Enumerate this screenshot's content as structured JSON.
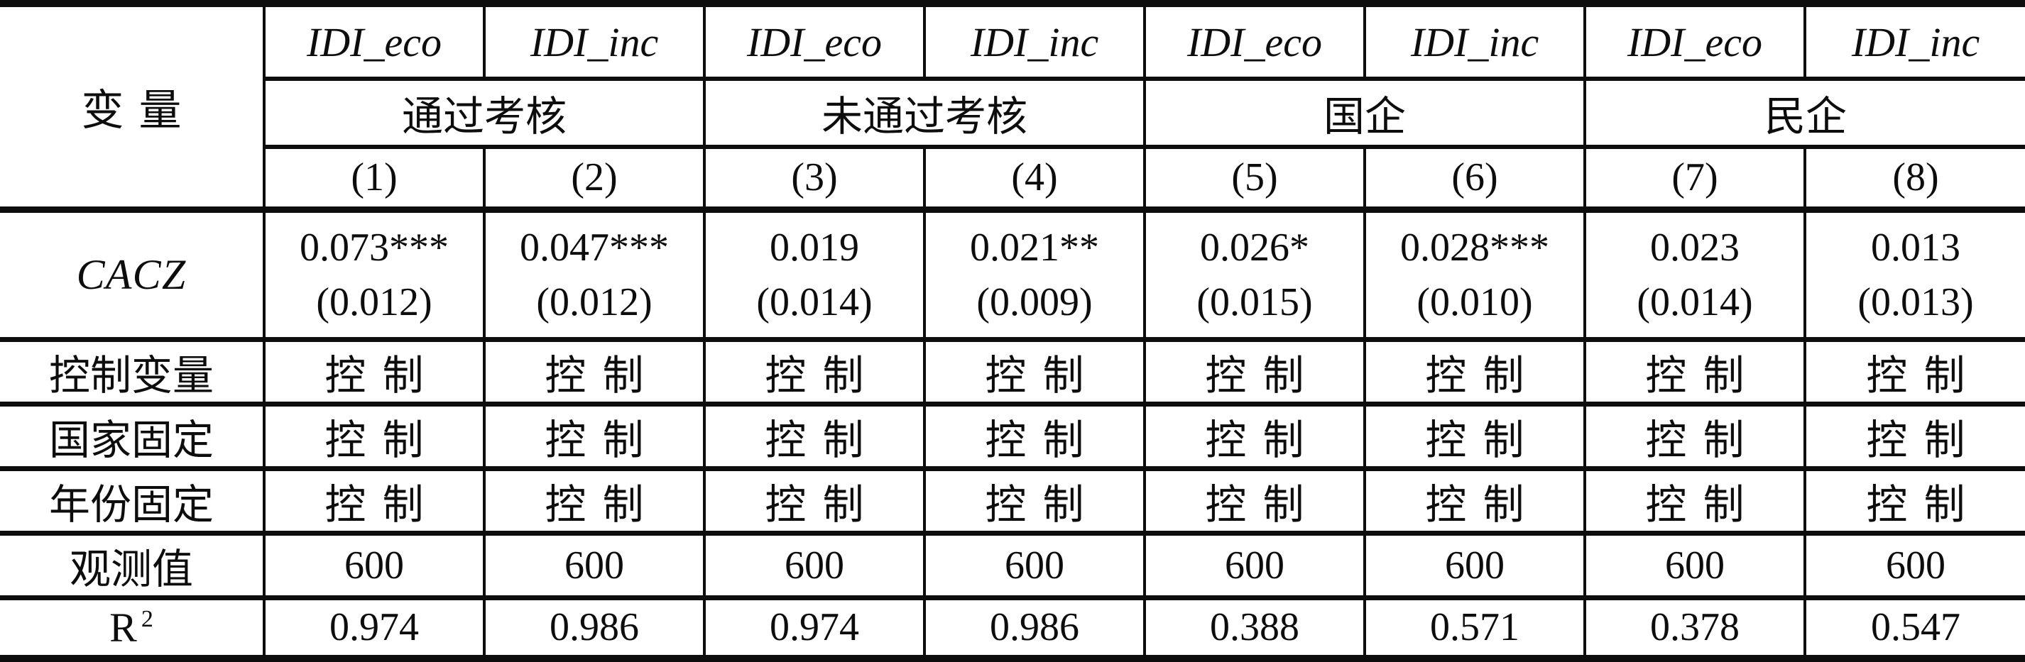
{
  "colors": {
    "ink": "#0d0d0d",
    "background": "#ffffff"
  },
  "table": {
    "corner_label": "变量",
    "dep_var_headers": [
      "IDI_eco",
      "IDI_inc",
      "IDI_eco",
      "IDI_inc",
      "IDI_eco",
      "IDI_inc",
      "IDI_eco",
      "IDI_inc"
    ],
    "group_headers": [
      "通过考核",
      "未通过考核",
      "国企",
      "民企"
    ],
    "model_numbers": [
      "(1)",
      "(2)",
      "(3)",
      "(4)",
      "(5)",
      "(6)",
      "(7)",
      "(8)"
    ],
    "coef_row": {
      "label": "CACZ",
      "coefficients": [
        "0.073***",
        "0.047***",
        "0.019",
        "0.021**",
        "0.026*",
        "0.028***",
        "0.023",
        "0.013"
      ],
      "std_errors": [
        "(0.012)",
        "(0.012)",
        "(0.014)",
        "(0.009)",
        "(0.015)",
        "(0.010)",
        "(0.014)",
        "(0.013)"
      ]
    },
    "control_rows": [
      {
        "label": "控制变量",
        "values": [
          "控制",
          "控制",
          "控制",
          "控制",
          "控制",
          "控制",
          "控制",
          "控制"
        ]
      },
      {
        "label": "国家固定",
        "values": [
          "控制",
          "控制",
          "控制",
          "控制",
          "控制",
          "控制",
          "控制",
          "控制"
        ]
      },
      {
        "label": "年份固定",
        "values": [
          "控制",
          "控制",
          "控制",
          "控制",
          "控制",
          "控制",
          "控制",
          "控制"
        ]
      }
    ],
    "obs_row": {
      "label": "观测值",
      "values": [
        "600",
        "600",
        "600",
        "600",
        "600",
        "600",
        "600",
        "600"
      ]
    },
    "r2_row": {
      "label_base": "R",
      "label_sup": "2",
      "values": [
        "0.974",
        "0.986",
        "0.974",
        "0.986",
        "0.388",
        "0.571",
        "0.378",
        "0.547"
      ]
    }
  }
}
